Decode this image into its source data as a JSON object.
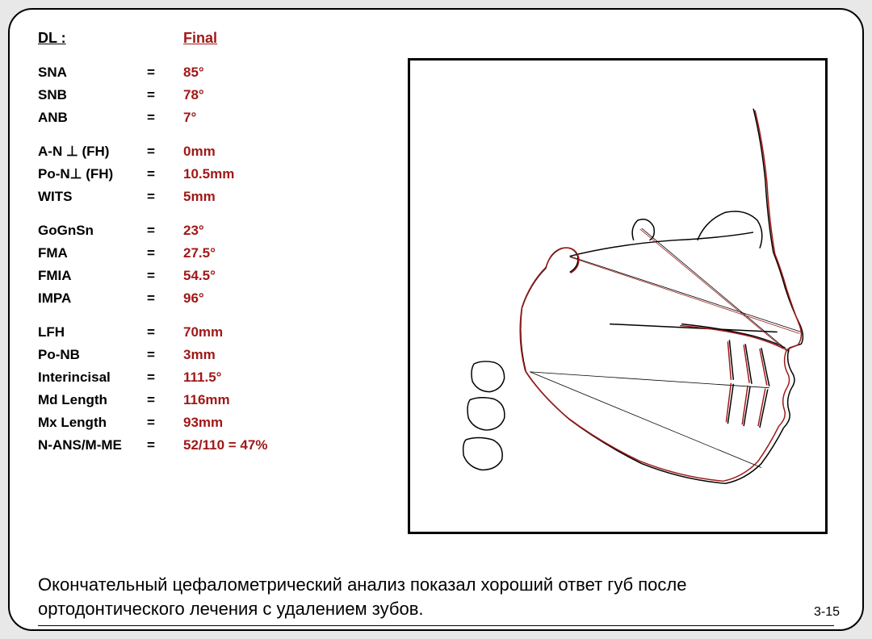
{
  "header": {
    "dl": "DL :",
    "final": "Final"
  },
  "groups": [
    [
      {
        "label": "SNA",
        "eq": "=",
        "value": "85°"
      },
      {
        "label": "SNB",
        "eq": "=",
        "value": "78°"
      },
      {
        "label": "ANB",
        "eq": "=",
        "value": "7°"
      }
    ],
    [
      {
        "label": "A-N ⊥ (FH)",
        "eq": "=",
        "value": "0mm"
      },
      {
        "label": "Po-N⊥ (FH)",
        "eq": "=",
        "value": "10.5mm"
      },
      {
        "label": "WITS",
        "eq": "=",
        "value": "5mm"
      }
    ],
    [
      {
        "label": "GoGnSn",
        "eq": "=",
        "value": "23°"
      },
      {
        "label": "FMA",
        "eq": "=",
        "value": "27.5°"
      },
      {
        "label": "FMIA",
        "eq": "=",
        "value": "54.5°"
      },
      {
        "label": "IMPA",
        "eq": "=",
        "value": "96°"
      }
    ],
    [
      {
        "label": "LFH",
        "eq": "=",
        "value": "70mm"
      },
      {
        "label": "Po-NB",
        "eq": "=",
        "value": "3mm"
      },
      {
        "label": "Interincisal",
        "eq": "=",
        "value": "111.5°"
      },
      {
        "label": "Md Length",
        "eq": "=",
        "value": "116mm"
      },
      {
        "label": "Mx Length",
        "eq": "=",
        "value": "93mm"
      },
      {
        "label": "N-ANS/M-ME",
        "eq": "=",
        "value": "52/110 = 47%"
      }
    ]
  ],
  "footer": "Окончательный цефалометрический анализ показал хороший ответ губ после ортодонтического лечения с удалением зубов.",
  "page_number": "3-15",
  "colors": {
    "value_color": "#a01818",
    "label_color": "#000000",
    "tracing_initial": "#000000",
    "tracing_final": "#a01818",
    "background": "#ffffff"
  },
  "tracing": {
    "type": "cephalometric-tracing",
    "stroke_initial": "#000000",
    "stroke_final": "#a01818",
    "stroke_width": 1.5
  }
}
